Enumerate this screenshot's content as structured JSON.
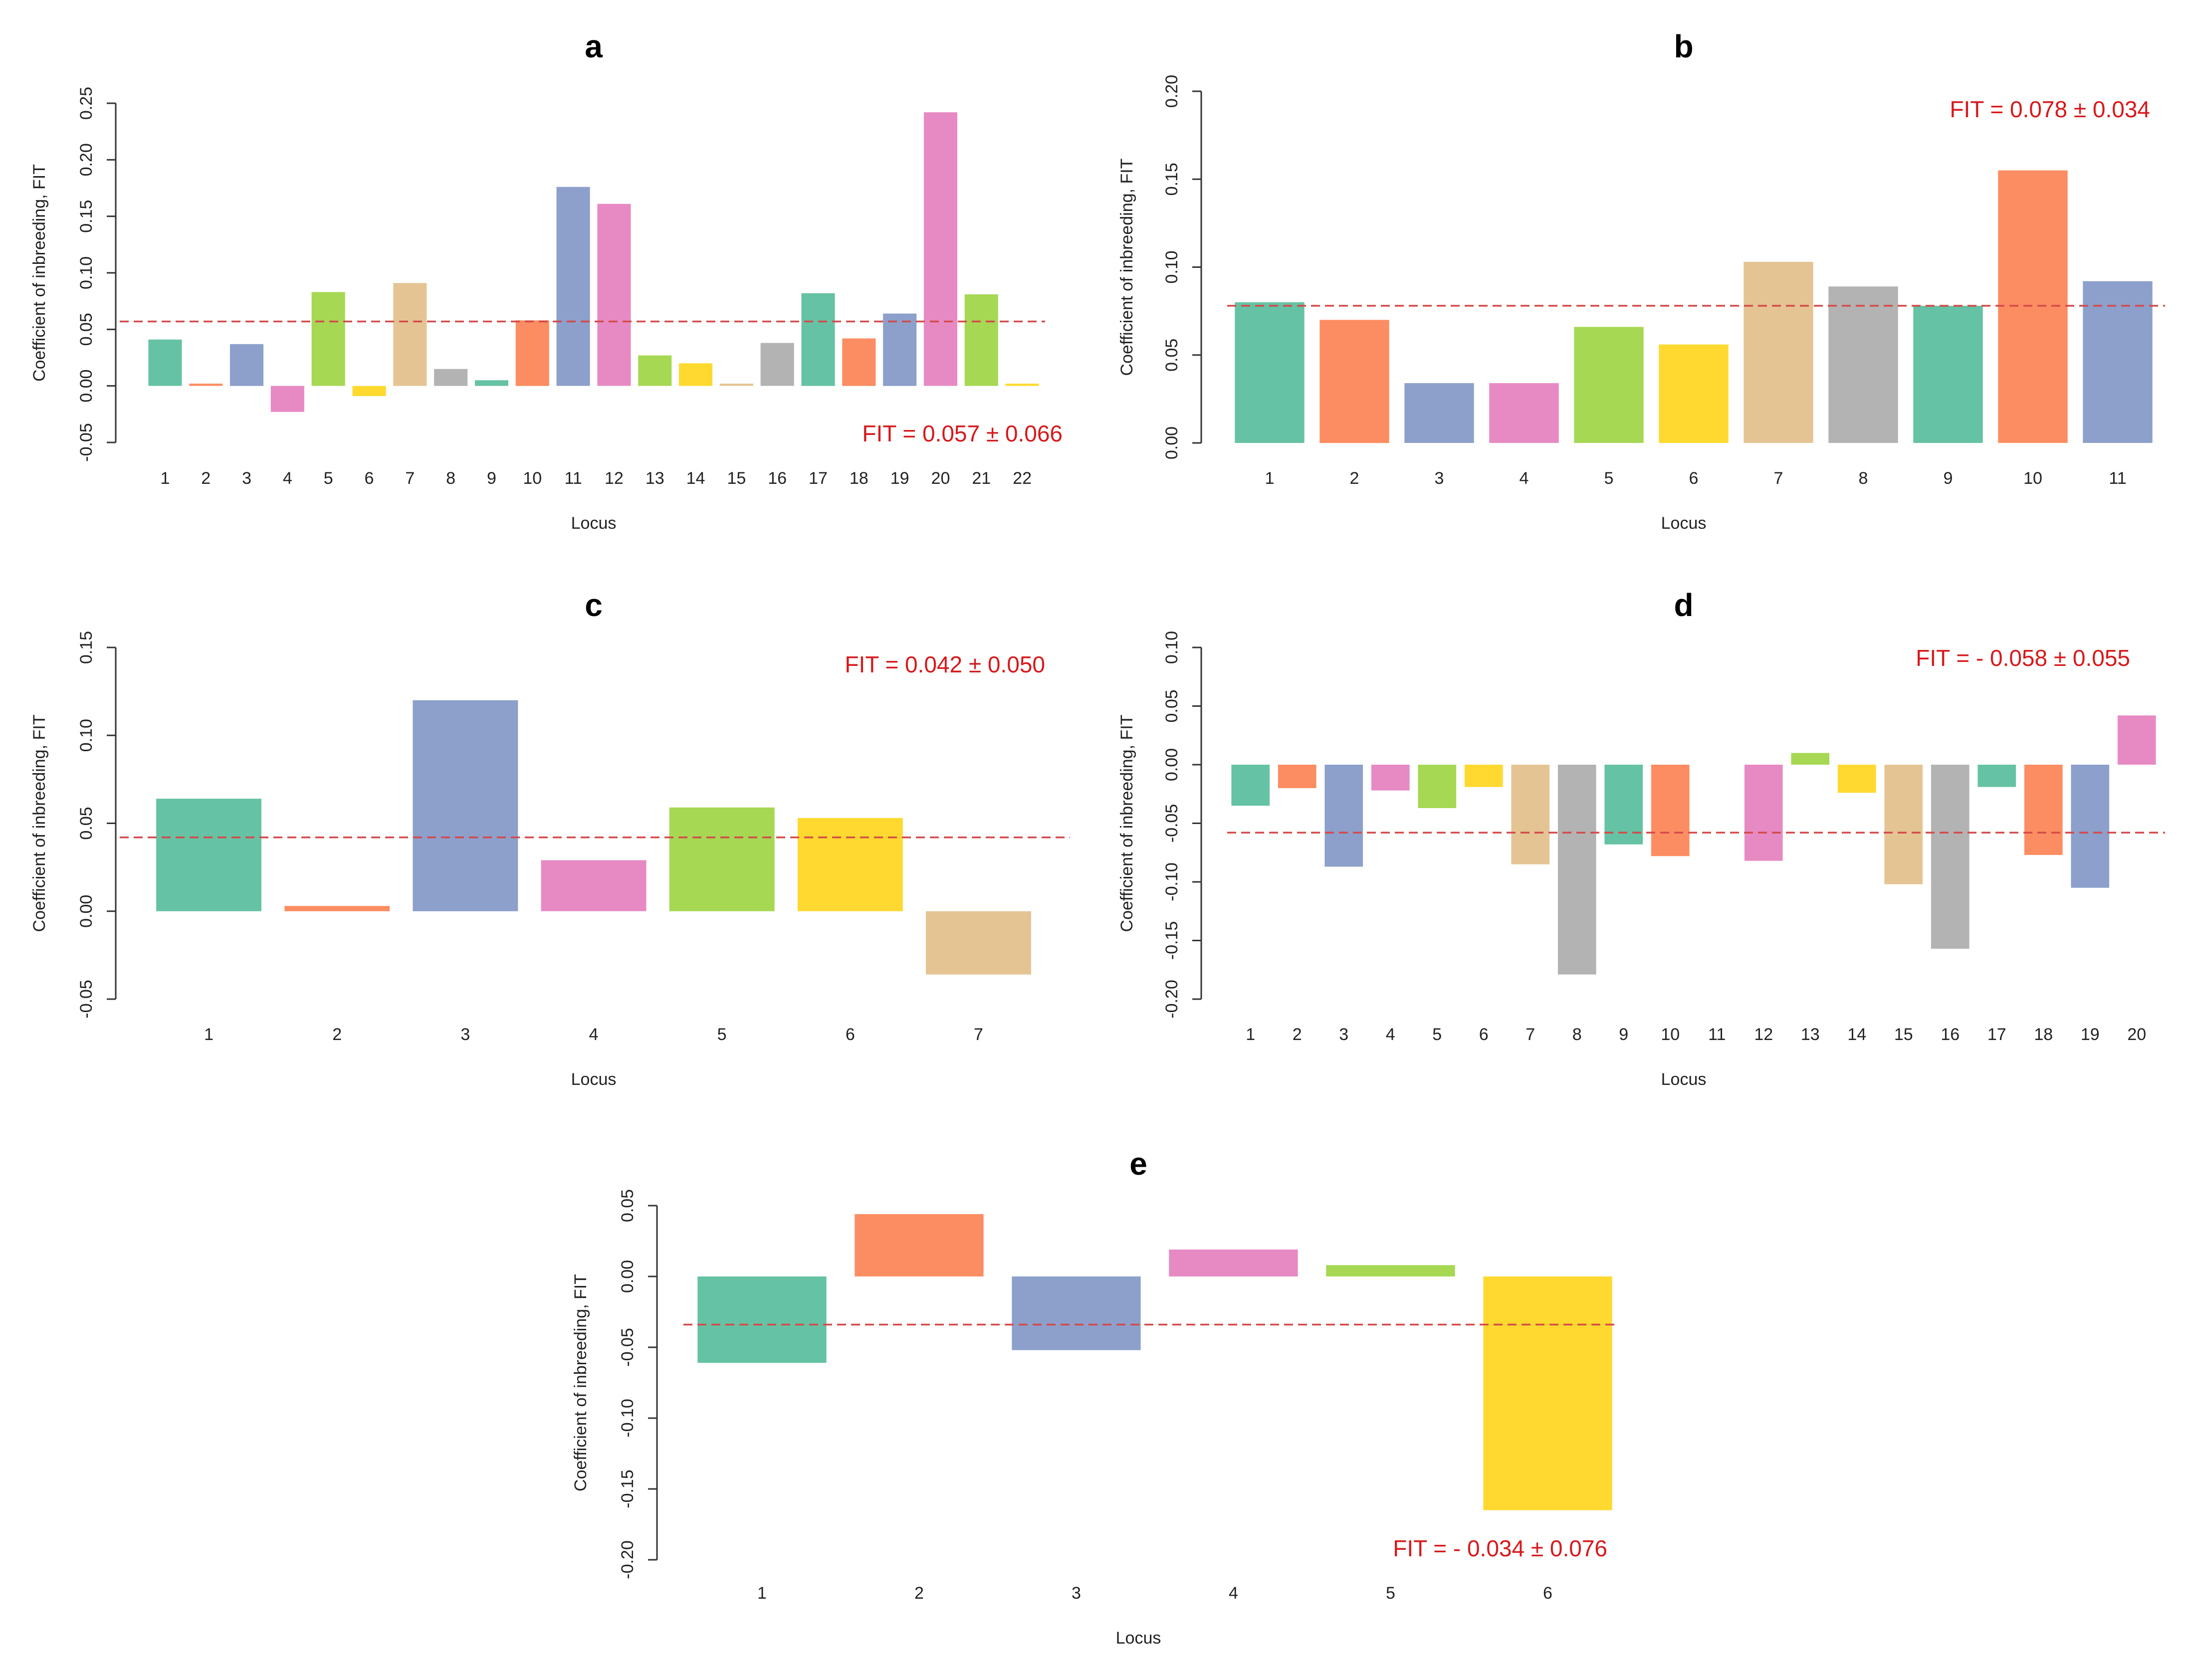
{
  "palette": [
    "#66c2a5",
    "#fc8d62",
    "#8da0cb",
    "#e78ac3",
    "#a6d854",
    "#ffd92f",
    "#e5c494",
    "#b3b3b3"
  ],
  "chart_data": [
    {
      "type": "bar",
      "panel": "a",
      "title": "a",
      "xlabel": "Locus",
      "ylabel": "Coefficient of inbreeding, FIT",
      "ylim": [
        -0.05,
        0.25
      ],
      "yticks": [
        "-0.05",
        "0.00",
        "0.05",
        "0.10",
        "0.15",
        "0.20",
        "0.25"
      ],
      "categories": [
        "1",
        "2",
        "3",
        "4",
        "5",
        "6",
        "7",
        "8",
        "9",
        "10",
        "11",
        "12",
        "13",
        "14",
        "15",
        "16",
        "17",
        "18",
        "19",
        "20",
        "21",
        "22"
      ],
      "values": [
        0.041,
        0.002,
        0.037,
        -0.023,
        0.083,
        -0.009,
        0.091,
        0.015,
        0.005,
        0.058,
        0.176,
        0.161,
        0.027,
        0.02,
        0.002,
        0.038,
        0.082,
        0.042,
        0.064,
        0.242,
        0.081,
        0.002
      ],
      "mean": 0.057,
      "annotation": "FIT = 0.057 ± 0.066",
      "annotation_position": "bottom-right"
    },
    {
      "type": "bar",
      "panel": "b",
      "title": "b",
      "xlabel": "Locus",
      "ylabel": "Coefficient of inbreeding, FIT",
      "ylim": [
        0.0,
        0.2
      ],
      "yticks": [
        "0.00",
        "0.05",
        "0.10",
        "0.15",
        "0.20"
      ],
      "categories": [
        "1",
        "2",
        "3",
        "4",
        "5",
        "6",
        "7",
        "8",
        "9",
        "10",
        "11"
      ],
      "values": [
        0.08,
        0.07,
        0.034,
        0.034,
        0.066,
        0.056,
        0.103,
        0.089,
        0.078,
        0.155,
        0.092
      ],
      "mean": 0.078,
      "annotation": "FIT = 0.078 ± 0.034",
      "annotation_position": "top-right"
    },
    {
      "type": "bar",
      "panel": "c",
      "title": "c",
      "xlabel": "Locus",
      "ylabel": "Coefficient of inbreeding, FIT",
      "ylim": [
        -0.05,
        0.15
      ],
      "yticks": [
        "-0.05",
        "0.00",
        "0.05",
        "0.10",
        "0.15"
      ],
      "categories": [
        "1",
        "2",
        "3",
        "4",
        "5",
        "6",
        "7"
      ],
      "values": [
        0.064,
        0.003,
        0.12,
        0.029,
        0.059,
        0.053,
        -0.036
      ],
      "mean": 0.042,
      "annotation": "FIT = 0.042 ± 0.050",
      "annotation_position": "top-right"
    },
    {
      "type": "bar",
      "panel": "d",
      "title": "d",
      "xlabel": "Locus",
      "ylabel": "Coefficient of inbreeding, FIT",
      "ylim": [
        -0.2,
        0.1
      ],
      "yticks": [
        "-0.20",
        "-0.15",
        "-0.10",
        "-0.05",
        "0.00",
        "0.05",
        "0.10"
      ],
      "categories": [
        "1",
        "2",
        "3",
        "4",
        "5",
        "6",
        "7",
        "8",
        "9",
        "10",
        "11",
        "12",
        "13",
        "14",
        "15",
        "16",
        "17",
        "18",
        "19",
        "20"
      ],
      "values": [
        -0.035,
        -0.02,
        -0.087,
        -0.022,
        -0.037,
        -0.019,
        -0.085,
        -0.179,
        -0.068,
        -0.078,
        0.0,
        -0.082,
        0.01,
        -0.024,
        -0.102,
        -0.157,
        -0.019,
        -0.077,
        -0.105,
        0.042
      ],
      "mean": -0.058,
      "annotation": "FIT = - 0.058 ± 0.055",
      "annotation_position": "top-right"
    },
    {
      "type": "bar",
      "panel": "e",
      "title": "e",
      "xlabel": "Locus",
      "ylabel": "Coefficient of inbreeding, FIT",
      "ylim": [
        -0.2,
        0.05
      ],
      "yticks": [
        "-0.20",
        "-0.15",
        "-0.10",
        "-0.05",
        "0.00",
        "0.05"
      ],
      "categories": [
        "1",
        "2",
        "3",
        "4",
        "5",
        "6"
      ],
      "values": [
        -0.061,
        0.044,
        -0.052,
        0.019,
        0.008,
        -0.165
      ],
      "mean": -0.034,
      "annotation": "FIT = - 0.034 ± 0.076",
      "annotation_position": "bottom-right"
    }
  ]
}
